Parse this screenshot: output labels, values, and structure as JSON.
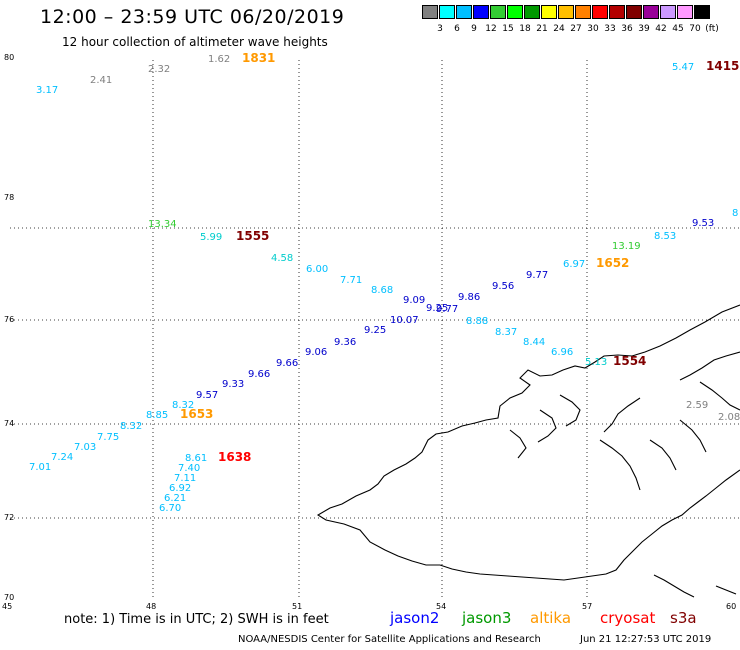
{
  "title": "12:00 – 23:59 UTC 06/20/2019",
  "subtitle": "12 hour collection of altimeter wave heights",
  "scale": {
    "unit_label": "(ft)",
    "colors": [
      "#808080",
      "#00ffff",
      "#00bfff",
      "#0000ff",
      "#33cc33",
      "#00ff00",
      "#009900",
      "#ffff00",
      "#ffbf00",
      "#ff8000",
      "#ff0000",
      "#b30000",
      "#800000",
      "#990099",
      "#cc99ff",
      "#ff99ff",
      "#000000"
    ],
    "labels": [
      "3",
      "6",
      "9",
      "12",
      "15",
      "18",
      "21",
      "24",
      "27",
      "30",
      "33",
      "36",
      "39",
      "42",
      "45",
      "70"
    ]
  },
  "lat_ticks": [
    "80",
    "78",
    "76",
    "74",
    "72",
    "70"
  ],
  "lon_ticks": [
    "45",
    "48",
    "51",
    "54",
    "57",
    "60"
  ],
  "observations": [
    {
      "text": "3.17",
      "color": "#00bfff"
    },
    {
      "text": "2.41",
      "color": "#808080"
    },
    {
      "text": "2.32",
      "color": "#808080"
    },
    {
      "text": "1.62",
      "color": "#808080"
    },
    {
      "text": "1831",
      "color": "#ff9900"
    },
    {
      "text": "5.47",
      "color": "#00bfff"
    },
    {
      "text": "1415",
      "color": "#800000"
    },
    {
      "text": "13.34",
      "color": "#33cc33"
    },
    {
      "text": "5.99",
      "color": "#00cccc"
    },
    {
      "text": "1555",
      "color": "#800000"
    },
    {
      "text": "4.58",
      "color": "#00cccc"
    },
    {
      "text": "6.00",
      "color": "#00bfff"
    },
    {
      "text": "7.71",
      "color": "#00bfff"
    },
    {
      "text": "8.68",
      "color": "#00bfff"
    },
    {
      "text": "9.09",
      "color": "#0000cc"
    },
    {
      "text": "9.25",
      "color": "#0000cc"
    },
    {
      "text": "9.77",
      "color": "#0000cc"
    },
    {
      "text": "9.86",
      "color": "#0000cc"
    },
    {
      "text": "9.56",
      "color": "#0000cc"
    },
    {
      "text": "9.77",
      "color": "#0000cc"
    },
    {
      "text": "6.97",
      "color": "#00bfff"
    },
    {
      "text": "1652",
      "color": "#ff9900"
    },
    {
      "text": "13.19",
      "color": "#33cc33"
    },
    {
      "text": "8.53",
      "color": "#00bfff"
    },
    {
      "text": "9.53",
      "color": "#0000cc"
    },
    {
      "text": "8",
      "color": "#00bfff"
    },
    {
      "text": "10.07",
      "color": "#0000cc"
    },
    {
      "text": "8.88",
      "color": "#00bfff"
    },
    {
      "text": "8.37",
      "color": "#00bfff"
    },
    {
      "text": "8.44",
      "color": "#00bfff"
    },
    {
      "text": "6.96",
      "color": "#00bfff"
    },
    {
      "text": "5.13",
      "color": "#00cccc"
    },
    {
      "text": "1554",
      "color": "#800000"
    },
    {
      "text": "9.25",
      "color": "#0000cc"
    },
    {
      "text": "9.36",
      "color": "#0000cc"
    },
    {
      "text": "9.06",
      "color": "#0000cc"
    },
    {
      "text": "9.66",
      "color": "#0000cc"
    },
    {
      "text": "9.66",
      "color": "#0000cc"
    },
    {
      "text": "9.33",
      "color": "#0000cc"
    },
    {
      "text": "9.57",
      "color": "#0000cc"
    },
    {
      "text": "8.32",
      "color": "#00bfff"
    },
    {
      "text": "8.85",
      "color": "#00bfff"
    },
    {
      "text": "1653",
      "color": "#ff9900"
    },
    {
      "text": "8.32",
      "color": "#00bfff"
    },
    {
      "text": "7.75",
      "color": "#00bfff"
    },
    {
      "text": "7.03",
      "color": "#00bfff"
    },
    {
      "text": "7.24",
      "color": "#00bfff"
    },
    {
      "text": "7.01",
      "color": "#00bfff"
    },
    {
      "text": "8.61",
      "color": "#00bfff"
    },
    {
      "text": "1638",
      "color": "#ff0000"
    },
    {
      "text": "7.40",
      "color": "#00bfff"
    },
    {
      "text": "7.11",
      "color": "#00bfff"
    },
    {
      "text": "6.92",
      "color": "#00bfff"
    },
    {
      "text": "6.21",
      "color": "#00bfff"
    },
    {
      "text": "6.70",
      "color": "#00bfff"
    },
    {
      "text": "2.59",
      "color": "#808080"
    },
    {
      "text": "2.08",
      "color": "#808080"
    }
  ],
  "note": "note:  1) Time is in UTC;  2) SWH is in feet",
  "satellites": [
    {
      "name": "jason2",
      "color": "#0000ff"
    },
    {
      "name": "jason3",
      "color": "#009900"
    },
    {
      "name": "altika",
      "color": "#ff9900"
    },
    {
      "name": "cryosat",
      "color": "#ff0000"
    },
    {
      "name": "s3a",
      "color": "#800000"
    }
  ],
  "credit": "NOAA/NESDIS Center for Satellite Applications and Research",
  "timestamp": "Jun 21 12:27:53 UTC 2019"
}
